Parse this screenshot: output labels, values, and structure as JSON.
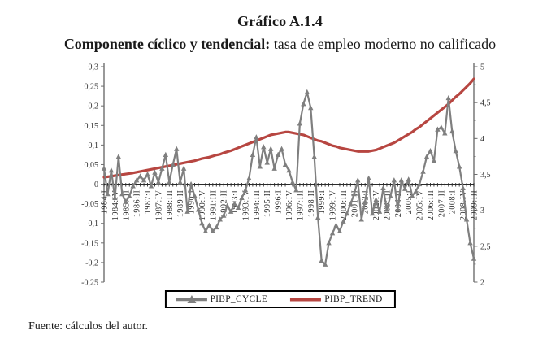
{
  "title": "Gráfico A.1.4",
  "subtitle": {
    "bold": "Componente cíclico y tendencial:",
    "rest": " tasa de empleo moderno no calificado"
  },
  "footer": "Fuente: cálculos del autor.",
  "legend": [
    {
      "label": "PIBP_CYCLE",
      "color": "#7f7f7f",
      "marker": "triangle-line"
    },
    {
      "label": "PIBP_TREND",
      "color": "#b74641",
      "marker": "line"
    }
  ],
  "chart_data": {
    "type": "line",
    "frequency": "quarterly",
    "x_start": "1984:I",
    "x_end": "2009:III",
    "x_tick_every": 3,
    "x_tick_labels": [
      "1984:I",
      "1984:IV",
      "1985:III",
      "1986:II",
      "1987:I",
      "1987:IV",
      "1988:III",
      "1989:II",
      "1990:I",
      "1990:IV",
      "1991:III",
      "1992:II",
      "1993:I",
      "1993:IV",
      "1994:III",
      "1995:II",
      "1996:I",
      "1996:IV",
      "1997:III",
      "1998:II",
      "1999:I",
      "1999:IV",
      "2000:III",
      "2001:II",
      "2002:I",
      "2002:IV",
      "2003:III",
      "2004:II",
      "2005:I",
      "2005:IV",
      "2006:III",
      "2007:II",
      "2008:I",
      "2008:IV",
      "2009:III"
    ],
    "left_axis": {
      "min": -0.25,
      "max": 0.3,
      "step": 0.05,
      "tick_labels": [
        "0,3",
        "0,25",
        "0,2",
        "0,15",
        "0,1",
        "0,05",
        "0",
        "-0,05",
        "-0,1",
        "-0,15",
        "-0,2",
        "-0,25"
      ]
    },
    "right_axis": {
      "min": 2,
      "max": 5,
      "step": 0.5,
      "minor_step": 0.25,
      "tick_labels": [
        "5",
        "4,5",
        "4",
        "3,5",
        "3",
        "2,5",
        "2"
      ]
    },
    "grid": false,
    "legend_position": "bottom-center",
    "series": [
      {
        "name": "PIBP_CYCLE",
        "axis": "left",
        "color": "#7f7f7f",
        "marker": "triangle",
        "values": [
          0.04,
          -0.025,
          0.035,
          -0.035,
          0.07,
          -0.025,
          -0.045,
          -0.03,
          -0.005,
          0.01,
          0.02,
          0.01,
          0.025,
          -0.005,
          0.03,
          0.005,
          0.04,
          0.075,
          0.005,
          0.05,
          0.09,
          0.005,
          0.04,
          -0.07,
          0.0,
          -0.03,
          -0.065,
          -0.1,
          -0.12,
          -0.105,
          -0.12,
          -0.11,
          -0.09,
          -0.08,
          -0.055,
          -0.07,
          -0.05,
          -0.06,
          -0.035,
          -0.015,
          0.015,
          0.075,
          0.12,
          0.045,
          0.095,
          0.055,
          0.09,
          0.04,
          0.075,
          0.09,
          0.05,
          0.035,
          0.005,
          -0.015,
          0.155,
          0.205,
          0.235,
          0.195,
          0.07,
          -0.085,
          -0.195,
          -0.205,
          -0.15,
          -0.125,
          -0.105,
          -0.12,
          -0.095,
          -0.075,
          -0.05,
          -0.025,
          0.01,
          -0.09,
          -0.045,
          0.015,
          -0.075,
          -0.04,
          -0.07,
          -0.01,
          -0.065,
          -0.03,
          0.01,
          -0.065,
          0.01,
          -0.012,
          0.012,
          -0.03,
          -0.018,
          0.0,
          0.032,
          0.07,
          0.085,
          0.06,
          0.14,
          0.145,
          0.13,
          0.22,
          0.135,
          0.085,
          0.045,
          -0.01,
          -0.09,
          -0.15,
          -0.19
        ]
      },
      {
        "name": "PIBP_TREND",
        "axis": "right",
        "color": "#b74641",
        "marker": "none",
        "values": [
          3.46,
          3.467,
          3.474,
          3.482,
          3.49,
          3.497,
          3.505,
          3.512,
          3.52,
          3.53,
          3.54,
          3.55,
          3.56,
          3.57,
          3.58,
          3.59,
          3.6,
          3.61,
          3.62,
          3.63,
          3.64,
          3.65,
          3.66,
          3.67,
          3.68,
          3.69,
          3.705,
          3.72,
          3.73,
          3.74,
          3.755,
          3.77,
          3.78,
          3.8,
          3.815,
          3.83,
          3.85,
          3.87,
          3.89,
          3.91,
          3.93,
          3.95,
          3.97,
          3.99,
          4.01,
          4.03,
          4.05,
          4.06,
          4.07,
          4.08,
          4.09,
          4.09,
          4.08,
          4.07,
          4.06,
          4.05,
          4.03,
          4.01,
          3.99,
          3.97,
          3.96,
          3.94,
          3.92,
          3.9,
          3.89,
          3.87,
          3.86,
          3.85,
          3.84,
          3.83,
          3.82,
          3.82,
          3.82,
          3.82,
          3.83,
          3.84,
          3.86,
          3.88,
          3.9,
          3.92,
          3.94,
          3.97,
          4.0,
          4.03,
          4.06,
          4.09,
          4.13,
          4.16,
          4.2,
          4.24,
          4.28,
          4.32,
          4.36,
          4.4,
          4.44,
          4.48,
          4.53,
          4.58,
          4.62,
          4.67,
          4.72,
          4.77,
          4.83
        ]
      }
    ]
  }
}
